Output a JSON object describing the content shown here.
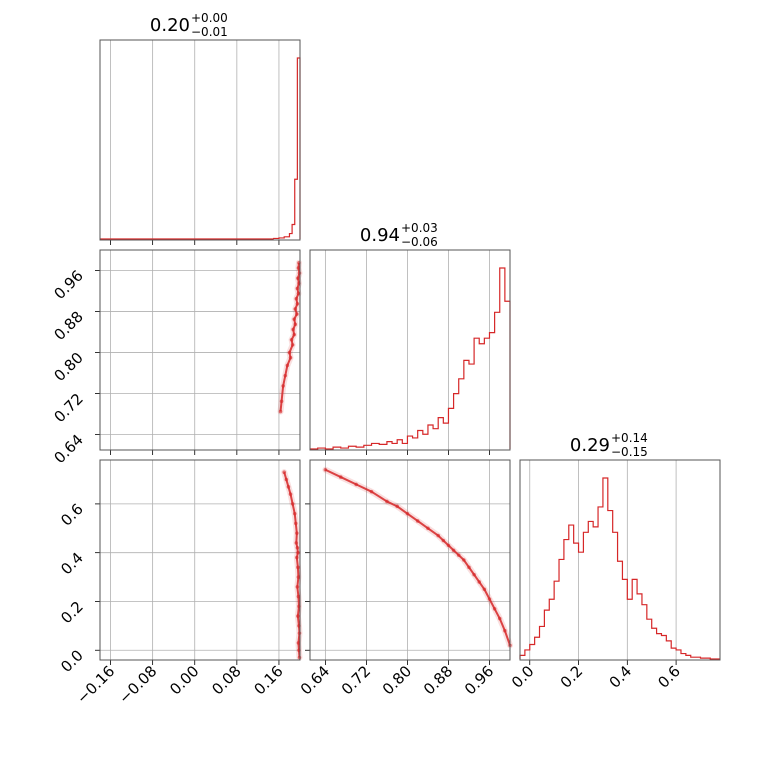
{
  "colors": {
    "line": "#d62728"
  },
  "chart_data": {
    "type": "corner",
    "parameters": [
      {
        "median": "0.20",
        "plus": "+0.00",
        "minus": "−0.01",
        "range": [
          -0.18,
          0.2
        ],
        "ticks": [
          -0.16,
          -0.08,
          0.0,
          0.08,
          0.16
        ],
        "tick_labels": [
          "−0.16",
          "−0.08",
          "0.00",
          "0.08",
          "0.16"
        ],
        "histogram": {
          "edges": [
            0.15,
            0.16,
            0.17,
            0.18,
            0.185,
            0.19,
            0.195,
            0.198,
            0.2
          ],
          "counts": [
            0.003,
            0.006,
            0.012,
            0.03,
            0.08,
            0.33,
            1.0,
            1.0
          ]
        }
      },
      {
        "median": "0.94",
        "plus": "+0.03",
        "minus": "−0.06",
        "range": [
          0.61,
          1.0
        ],
        "ticks": [
          0.64,
          0.72,
          0.8,
          0.88,
          0.96
        ],
        "tick_labels": [
          "0.64",
          "0.72",
          "0.80",
          "0.88",
          "0.96"
        ],
        "histogram": {
          "edges": [
            0.61,
            0.625,
            0.64,
            0.655,
            0.67,
            0.685,
            0.7,
            0.715,
            0.73,
            0.745,
            0.76,
            0.77,
            0.78,
            0.79,
            0.8,
            0.81,
            0.82,
            0.83,
            0.84,
            0.85,
            0.86,
            0.87,
            0.88,
            0.89,
            0.9,
            0.91,
            0.92,
            0.93,
            0.94,
            0.95,
            0.96,
            0.97,
            0.98,
            0.99,
            1.0
          ],
          "counts": [
            0.0,
            0.005,
            0.0,
            0.01,
            0.005,
            0.015,
            0.01,
            0.02,
            0.03,
            0.025,
            0.04,
            0.03,
            0.05,
            0.03,
            0.07,
            0.06,
            0.1,
            0.08,
            0.13,
            0.11,
            0.17,
            0.14,
            0.22,
            0.3,
            0.38,
            0.48,
            0.46,
            0.6,
            0.57,
            0.6,
            0.63,
            0.74,
            0.98,
            0.8
          ]
        }
      },
      {
        "median": "0.29",
        "plus": "+0.14",
        "minus": "−0.15",
        "range": [
          -0.04,
          0.78
        ],
        "ticks": [
          0.0,
          0.2,
          0.4,
          0.6
        ],
        "tick_labels": [
          "0.0",
          "0.2",
          "0.4",
          "0.6"
        ],
        "histogram": {
          "edges": [
            -0.04,
            -0.02,
            0.0,
            0.02,
            0.04,
            0.06,
            0.08,
            0.1,
            0.12,
            0.14,
            0.16,
            0.18,
            0.2,
            0.22,
            0.24,
            0.26,
            0.28,
            0.3,
            0.32,
            0.34,
            0.36,
            0.38,
            0.4,
            0.42,
            0.44,
            0.46,
            0.48,
            0.5,
            0.52,
            0.54,
            0.56,
            0.58,
            0.6,
            0.62,
            0.64,
            0.66,
            0.68,
            0.7,
            0.72,
            0.74,
            0.76,
            0.78
          ],
          "counts": [
            0.02,
            0.05,
            0.08,
            0.12,
            0.18,
            0.27,
            0.33,
            0.43,
            0.55,
            0.66,
            0.74,
            0.64,
            0.59,
            0.7,
            0.76,
            0.73,
            0.84,
            1.0,
            0.82,
            0.7,
            0.54,
            0.44,
            0.33,
            0.44,
            0.36,
            0.3,
            0.22,
            0.17,
            0.14,
            0.13,
            0.1,
            0.06,
            0.05,
            0.03,
            0.02,
            0.01,
            0.01,
            0.005,
            0.005,
            0.0,
            0.0
          ]
        }
      }
    ],
    "scatter": {
      "p1_p2": {
        "x": [
          0.198,
          0.197,
          0.199,
          0.196,
          0.198,
          0.195,
          0.197,
          0.193,
          0.195,
          0.191,
          0.194,
          0.189,
          0.191,
          0.187,
          0.189,
          0.184,
          0.186,
          0.18,
          0.182,
          0.176,
          0.172,
          0.168,
          0.165,
          0.163
        ],
        "y": [
          0.975,
          0.965,
          0.955,
          0.945,
          0.935,
          0.925,
          0.915,
          0.905,
          0.895,
          0.885,
          0.875,
          0.865,
          0.855,
          0.845,
          0.835,
          0.825,
          0.815,
          0.8,
          0.79,
          0.775,
          0.755,
          0.735,
          0.705,
          0.685
        ]
      },
      "p1_p3": {
        "x": [
          0.199,
          0.198,
          0.197,
          0.199,
          0.198,
          0.196,
          0.198,
          0.197,
          0.195,
          0.197,
          0.196,
          0.194,
          0.196,
          0.195,
          0.193,
          0.194,
          0.192,
          0.19,
          0.186,
          0.182,
          0.178,
          0.174,
          0.17
        ],
        "y": [
          -0.03,
          0.0,
          0.03,
          0.07,
          0.1,
          0.14,
          0.18,
          0.22,
          0.26,
          0.3,
          0.34,
          0.38,
          0.4,
          0.42,
          0.44,
          0.48,
          0.52,
          0.56,
          0.6,
          0.64,
          0.67,
          0.7,
          0.73
        ]
      },
      "p2_p3": {
        "x": [
          0.64,
          0.67,
          0.7,
          0.73,
          0.76,
          0.78,
          0.8,
          0.82,
          0.84,
          0.86,
          0.87,
          0.88,
          0.89,
          0.9,
          0.91,
          0.92,
          0.93,
          0.94,
          0.95,
          0.96,
          0.97,
          0.98,
          0.99,
          1.0
        ],
        "y": [
          0.74,
          0.71,
          0.68,
          0.65,
          0.61,
          0.59,
          0.56,
          0.53,
          0.5,
          0.47,
          0.45,
          0.43,
          0.41,
          0.39,
          0.37,
          0.34,
          0.31,
          0.28,
          0.25,
          0.21,
          0.17,
          0.13,
          0.08,
          0.02
        ]
      }
    }
  }
}
